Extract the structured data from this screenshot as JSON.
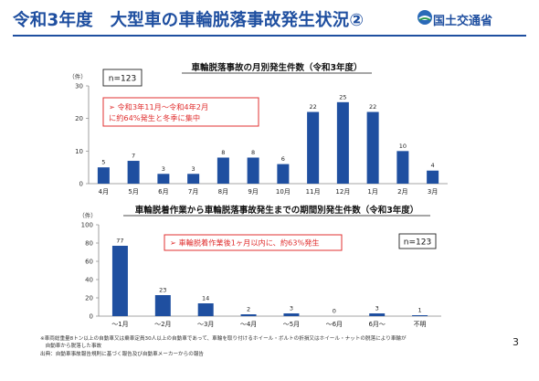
{
  "header": {
    "title": "令和3年度　大型車の車輪脱落事故発生状況②",
    "ministry": "国土交通省"
  },
  "page_number": "3",
  "footnotes": [
    "※車両総重量8トン以上の自動車又は乗車定員30人以上の自動車であって、車輪を取り付けるホイール・ボルトの折損又はホイール・ナットの脱落により車輪が",
    "　自動車から脱落した事故",
    "出典：自動車事故報告規則に基づく報告及び自動車メーカーからの報告"
  ],
  "colors": {
    "bar": "#1f4fa0",
    "accent_red": "#e03030",
    "title_blue": "#1f4fa0"
  },
  "chart_data": [
    {
      "type": "bar",
      "title": "車輪脱落事故の月別発生件数（令和3年度）",
      "ylabel": "（件）",
      "ylim": [
        0,
        30
      ],
      "yticks": [
        0,
        10,
        20,
        30
      ],
      "grid": false,
      "legend": "none",
      "count_box": "n=123",
      "callout_lines": [
        "➢ 令和3年11月～令和4年2月",
        "に約64%発生と冬季に集中"
      ],
      "categories": [
        "4月",
        "5月",
        "6月",
        "7月",
        "8月",
        "9月",
        "10月",
        "11月",
        "12月",
        "1月",
        "2月",
        "3月"
      ],
      "values": [
        5,
        7,
        3,
        3,
        8,
        8,
        6,
        22,
        25,
        22,
        10,
        4
      ],
      "value_labels": [
        "5",
        "7",
        "3",
        "3",
        "8",
        "8",
        "6",
        "22",
        "25",
        "22",
        "10",
        "4"
      ]
    },
    {
      "type": "bar",
      "title": "車輪脱着作業から車輪脱落事故発生までの期間別発生件数（令和3年度）",
      "ylabel": "（件）",
      "ylim": [
        0,
        100
      ],
      "yticks": [
        0,
        20,
        40,
        60,
        80,
        100
      ],
      "grid": false,
      "legend": "none",
      "count_box": "n=123",
      "callout_lines": [
        "➢ 車輪脱着作業後1ヶ月以内に、約63%発生"
      ],
      "categories": [
        "～1月",
        "～2月",
        "～3月",
        "～4月",
        "～5月",
        "～6月",
        "6月～",
        "不明"
      ],
      "values": [
        77,
        23,
        14,
        2,
        3,
        0,
        3,
        1
      ],
      "value_labels": [
        "77",
        "23",
        "14",
        "2",
        "3",
        "0",
        "3",
        "1"
      ]
    }
  ]
}
